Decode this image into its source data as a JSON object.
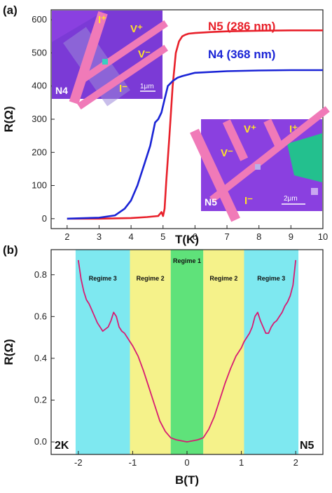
{
  "panel_a": {
    "panel_label": "(a)",
    "labels": {
      "n5": "N5 (286 nm)",
      "n4": "N4 (368 nm)"
    },
    "colors": {
      "n5": "#e8202a",
      "n4": "#1a24d6"
    },
    "inset_n4": {
      "name": "N4",
      "i_plus": "I⁺",
      "i_minus": "I⁻",
      "v_plus": "V⁺",
      "v_minus": "V⁻",
      "scale": "1μm"
    },
    "inset_n5": {
      "name": "N5",
      "i_plus": "I⁺",
      "i_minus": "I⁻",
      "v_plus": "V⁺",
      "v_minus": "V⁻",
      "scale": "2μm"
    }
  },
  "panel_b": {
    "panel_label": "(b)",
    "temperature_label": "2K",
    "sample_label": "N5",
    "line_color": "#d81b72",
    "regimes": [
      {
        "label": "Regime 3",
        "from": -2.05,
        "to": -1.05,
        "color": "#7ee8f0"
      },
      {
        "label": "Regime 2",
        "from": -1.05,
        "to": -0.3,
        "color": "#f5f28a"
      },
      {
        "label": "Regime 1",
        "from": -0.3,
        "to": 0.3,
        "color": "#5fe27a"
      },
      {
        "label": "Regime 2",
        "from": 0.3,
        "to": 1.05,
        "color": "#f5f28a"
      },
      {
        "label": "Regime 3",
        "from": 1.05,
        "to": 2.05,
        "color": "#7ee8f0"
      }
    ]
  },
  "chart_data": [
    {
      "type": "line",
      "xlabel": "T(K)",
      "ylabel": "R(Ω)",
      "xlim": [
        1.5,
        10
      ],
      "ylim": [
        -30,
        630
      ],
      "xticks": [
        2,
        3,
        4,
        5,
        6,
        7,
        8,
        9,
        10
      ],
      "yticks": [
        0,
        100,
        200,
        300,
        400,
        500,
        600
      ],
      "series": [
        {
          "name": "N5 (286 nm)",
          "x": [
            2,
            3,
            4,
            4.5,
            4.85,
            4.95,
            5.0,
            5.05,
            5.1,
            5.2,
            5.3,
            5.4,
            5.5,
            5.6,
            5.7,
            5.8,
            6.0,
            6.5,
            7,
            8,
            9,
            10
          ],
          "y": [
            0,
            0,
            2,
            5,
            8,
            20,
            8,
            30,
            110,
            250,
            400,
            500,
            535,
            550,
            555,
            558,
            560,
            563,
            565,
            567,
            568,
            568
          ]
        },
        {
          "name": "N4 (368 nm)",
          "x": [
            2,
            3,
            3.5,
            3.8,
            4.0,
            4.2,
            4.4,
            4.6,
            4.75,
            4.85,
            4.95,
            5.05,
            5.15,
            5.3,
            5.45,
            5.6,
            6,
            7,
            8,
            9,
            10
          ],
          "y": [
            0,
            3,
            10,
            30,
            55,
            100,
            160,
            220,
            290,
            300,
            320,
            360,
            400,
            415,
            425,
            430,
            440,
            445,
            447,
            448,
            448
          ]
        }
      ]
    },
    {
      "type": "line",
      "xlabel": "B(T)",
      "ylabel": "R(Ω)",
      "xlim": [
        -2.5,
        2.5
      ],
      "ylim": [
        -0.06,
        0.92
      ],
      "xticks": [
        -2,
        -1,
        0,
        1,
        2
      ],
      "yticks": [
        0.0,
        0.2,
        0.4,
        0.6,
        0.8
      ],
      "series": [
        {
          "name": "2K",
          "x": [
            -2.0,
            -1.95,
            -1.9,
            -1.85,
            -1.8,
            -1.75,
            -1.7,
            -1.65,
            -1.6,
            -1.55,
            -1.5,
            -1.45,
            -1.4,
            -1.35,
            -1.3,
            -1.25,
            -1.2,
            -1.15,
            -1.1,
            -1.05,
            -1.0,
            -0.9,
            -0.8,
            -0.7,
            -0.6,
            -0.5,
            -0.4,
            -0.3,
            -0.2,
            -0.1,
            0.0,
            0.1,
            0.2,
            0.3,
            0.4,
            0.5,
            0.6,
            0.7,
            0.8,
            0.9,
            1.0,
            1.05,
            1.1,
            1.15,
            1.2,
            1.25,
            1.3,
            1.35,
            1.4,
            1.45,
            1.5,
            1.55,
            1.6,
            1.65,
            1.7,
            1.75,
            1.8,
            1.85,
            1.9,
            1.95,
            2.0
          ],
          "y": [
            0.87,
            0.78,
            0.72,
            0.68,
            0.66,
            0.63,
            0.6,
            0.57,
            0.55,
            0.53,
            0.54,
            0.55,
            0.58,
            0.62,
            0.6,
            0.55,
            0.53,
            0.52,
            0.5,
            0.48,
            0.46,
            0.41,
            0.34,
            0.26,
            0.18,
            0.1,
            0.05,
            0.02,
            0.01,
            0.005,
            0.0,
            0.005,
            0.01,
            0.02,
            0.06,
            0.12,
            0.2,
            0.28,
            0.35,
            0.41,
            0.45,
            0.48,
            0.5,
            0.52,
            0.55,
            0.6,
            0.62,
            0.58,
            0.55,
            0.52,
            0.52,
            0.55,
            0.57,
            0.58,
            0.6,
            0.62,
            0.65,
            0.67,
            0.7,
            0.75,
            0.87
          ]
        }
      ]
    }
  ]
}
